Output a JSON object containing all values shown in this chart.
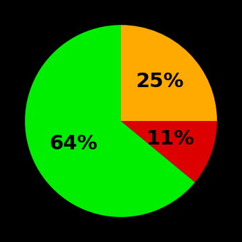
{
  "slices": [
    64,
    11,
    25
  ],
  "colors": [
    "#00ee00",
    "#dd0000",
    "#ffaa00"
  ],
  "labels": [
    "64%",
    "11%",
    "25%"
  ],
  "background_color": "#000000",
  "startangle": 90,
  "figsize": [
    3.5,
    3.5
  ],
  "dpi": 100,
  "label_fontsize": 21,
  "label_fontweight": "bold",
  "label_radii": [
    0.55,
    0.55,
    0.58
  ]
}
